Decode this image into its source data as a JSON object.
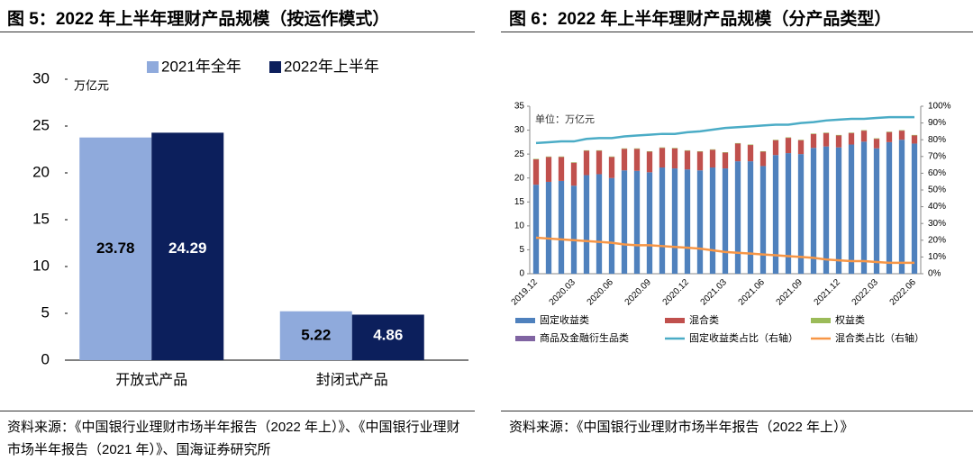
{
  "chart_data": [
    {
      "type": "bar",
      "title": "图 5：2022 年上半年理财产品规模（按运作模式）",
      "source": "资料来源：《中国银行业理财市场半年报告（2022 年上）》、《中国银行业理财市场半年报告（2021 年）》、国海证券研究所",
      "ylabel": "万亿元",
      "categories": [
        "开放式产品",
        "封闭式产品"
      ],
      "series": [
        {
          "name": "2021年全年",
          "color": "#8faadc",
          "values": [
            23.78,
            5.22
          ]
        },
        {
          "name": "2022年上半年",
          "color": "#0c1f5c",
          "values": [
            24.29,
            4.86
          ]
        }
      ],
      "ylim": [
        0,
        30
      ],
      "yticks": [
        0,
        5,
        10,
        15,
        20,
        25,
        30
      ],
      "legend": "top",
      "grid": false
    },
    {
      "type": "bar",
      "stacked": true,
      "title": "图 6：2022 年上半年理财产品规模（分产品类型）",
      "source": "资料来源：《中国银行业理财市场半年报告（2022 年上）》",
      "annotation": "单位：万亿元",
      "categories": [
        "2019.12",
        null,
        null,
        "2020.03",
        null,
        null,
        "2020.06",
        null,
        null,
        "2020.09",
        null,
        null,
        "2020.12",
        null,
        null,
        "2021.03",
        null,
        null,
        "2021.06",
        null,
        null,
        "2021.09",
        null,
        null,
        "2021.12",
        null,
        null,
        "2022.03",
        null,
        null,
        "2022.06"
      ],
      "series": [
        {
          "name": "固定收益类",
          "color": "#4f81bd",
          "values": [
            18.6,
            19.2,
            19.4,
            18.4,
            20.6,
            20.8,
            20.0,
            21.6,
            21.5,
            21.2,
            22.2,
            22.0,
            21.8,
            21.6,
            22.2,
            22.0,
            23.5,
            23.5,
            22.5,
            24.8,
            25.2,
            25.0,
            26.3,
            26.6,
            26.4,
            27.0,
            27.6,
            26.2,
            27.5,
            28.0,
            27.2
          ]
        },
        {
          "name": "混合类",
          "color": "#c0504d",
          "values": [
            5.3,
            5.2,
            5.0,
            4.8,
            5.1,
            4.9,
            4.4,
            4.5,
            4.6,
            4.3,
            4.1,
            4.2,
            3.9,
            3.9,
            3.7,
            3.3,
            3.7,
            3.4,
            3.0,
            3.1,
            3.2,
            2.9,
            2.9,
            2.8,
            2.5,
            2.4,
            2.3,
            2.0,
            2.1,
            1.9,
            1.7
          ]
        },
        {
          "name": "权益类",
          "color": "#9bbb59",
          "values": [
            0.1,
            0.1,
            0.1,
            0.1,
            0.1,
            0.1,
            0.1,
            0.1,
            0.1,
            0.1,
            0.1,
            0.1,
            0.1,
            0.1,
            0.1,
            0.1,
            0.1,
            0.1,
            0.1,
            0.1,
            0.1,
            0.1,
            0.1,
            0.1,
            0.1,
            0.1,
            0.1,
            0.1,
            0.1,
            0.1,
            0.1
          ]
        },
        {
          "name": "商品及金融衍生品类",
          "color": "#8064a2",
          "values": [
            0,
            0,
            0,
            0,
            0,
            0,
            0,
            0,
            0,
            0,
            0,
            0,
            0,
            0,
            0,
            0,
            0,
            0,
            0,
            0,
            0,
            0,
            0,
            0,
            0,
            0,
            0,
            0,
            0,
            0,
            0
          ]
        },
        {
          "name": "固定收益类占比（右轴）",
          "color": "#4bacc6",
          "type": "line",
          "axis": "y2",
          "values": [
            78,
            78.5,
            79,
            79,
            80.5,
            81,
            81,
            82,
            82.5,
            83,
            83.5,
            83.5,
            84.5,
            85,
            86,
            87,
            87.5,
            88,
            88.5,
            89,
            89,
            90,
            90.5,
            91.5,
            92,
            92.5,
            92.5,
            93,
            93.5,
            93.5,
            93.5
          ]
        },
        {
          "name": "混合类占比（右轴）",
          "color": "#f79646",
          "type": "line",
          "axis": "y2",
          "values": [
            21.5,
            21,
            20.5,
            20,
            19.5,
            19,
            18.5,
            17.5,
            17,
            17,
            16.5,
            16,
            15.5,
            15,
            14,
            13,
            12.5,
            12,
            11.5,
            11,
            10.5,
            10,
            9.5,
            8.5,
            8,
            7.5,
            7.5,
            7,
            6.5,
            6.5,
            6.5
          ]
        }
      ],
      "ylim": [
        0,
        35
      ],
      "yticks": [
        0,
        5,
        10,
        15,
        20,
        25,
        30,
        35
      ],
      "y2lim": [
        0,
        100
      ],
      "y2ticks": [
        {
          "value": 0,
          "label": "0%"
        },
        {
          "value": 10,
          "label": "10%"
        },
        {
          "value": 20,
          "label": "20%"
        },
        {
          "value": 30,
          "label": "30%"
        },
        {
          "value": 40,
          "label": "40%"
        },
        {
          "value": 50,
          "label": "50%"
        },
        {
          "value": 60,
          "label": "60%"
        },
        {
          "value": 70,
          "label": "70%"
        },
        {
          "value": 80,
          "label": "80%"
        },
        {
          "value": 90,
          "label": "90%"
        },
        {
          "value": 100,
          "label": "100%"
        }
      ],
      "legend": "bottom",
      "grid": false
    }
  ]
}
